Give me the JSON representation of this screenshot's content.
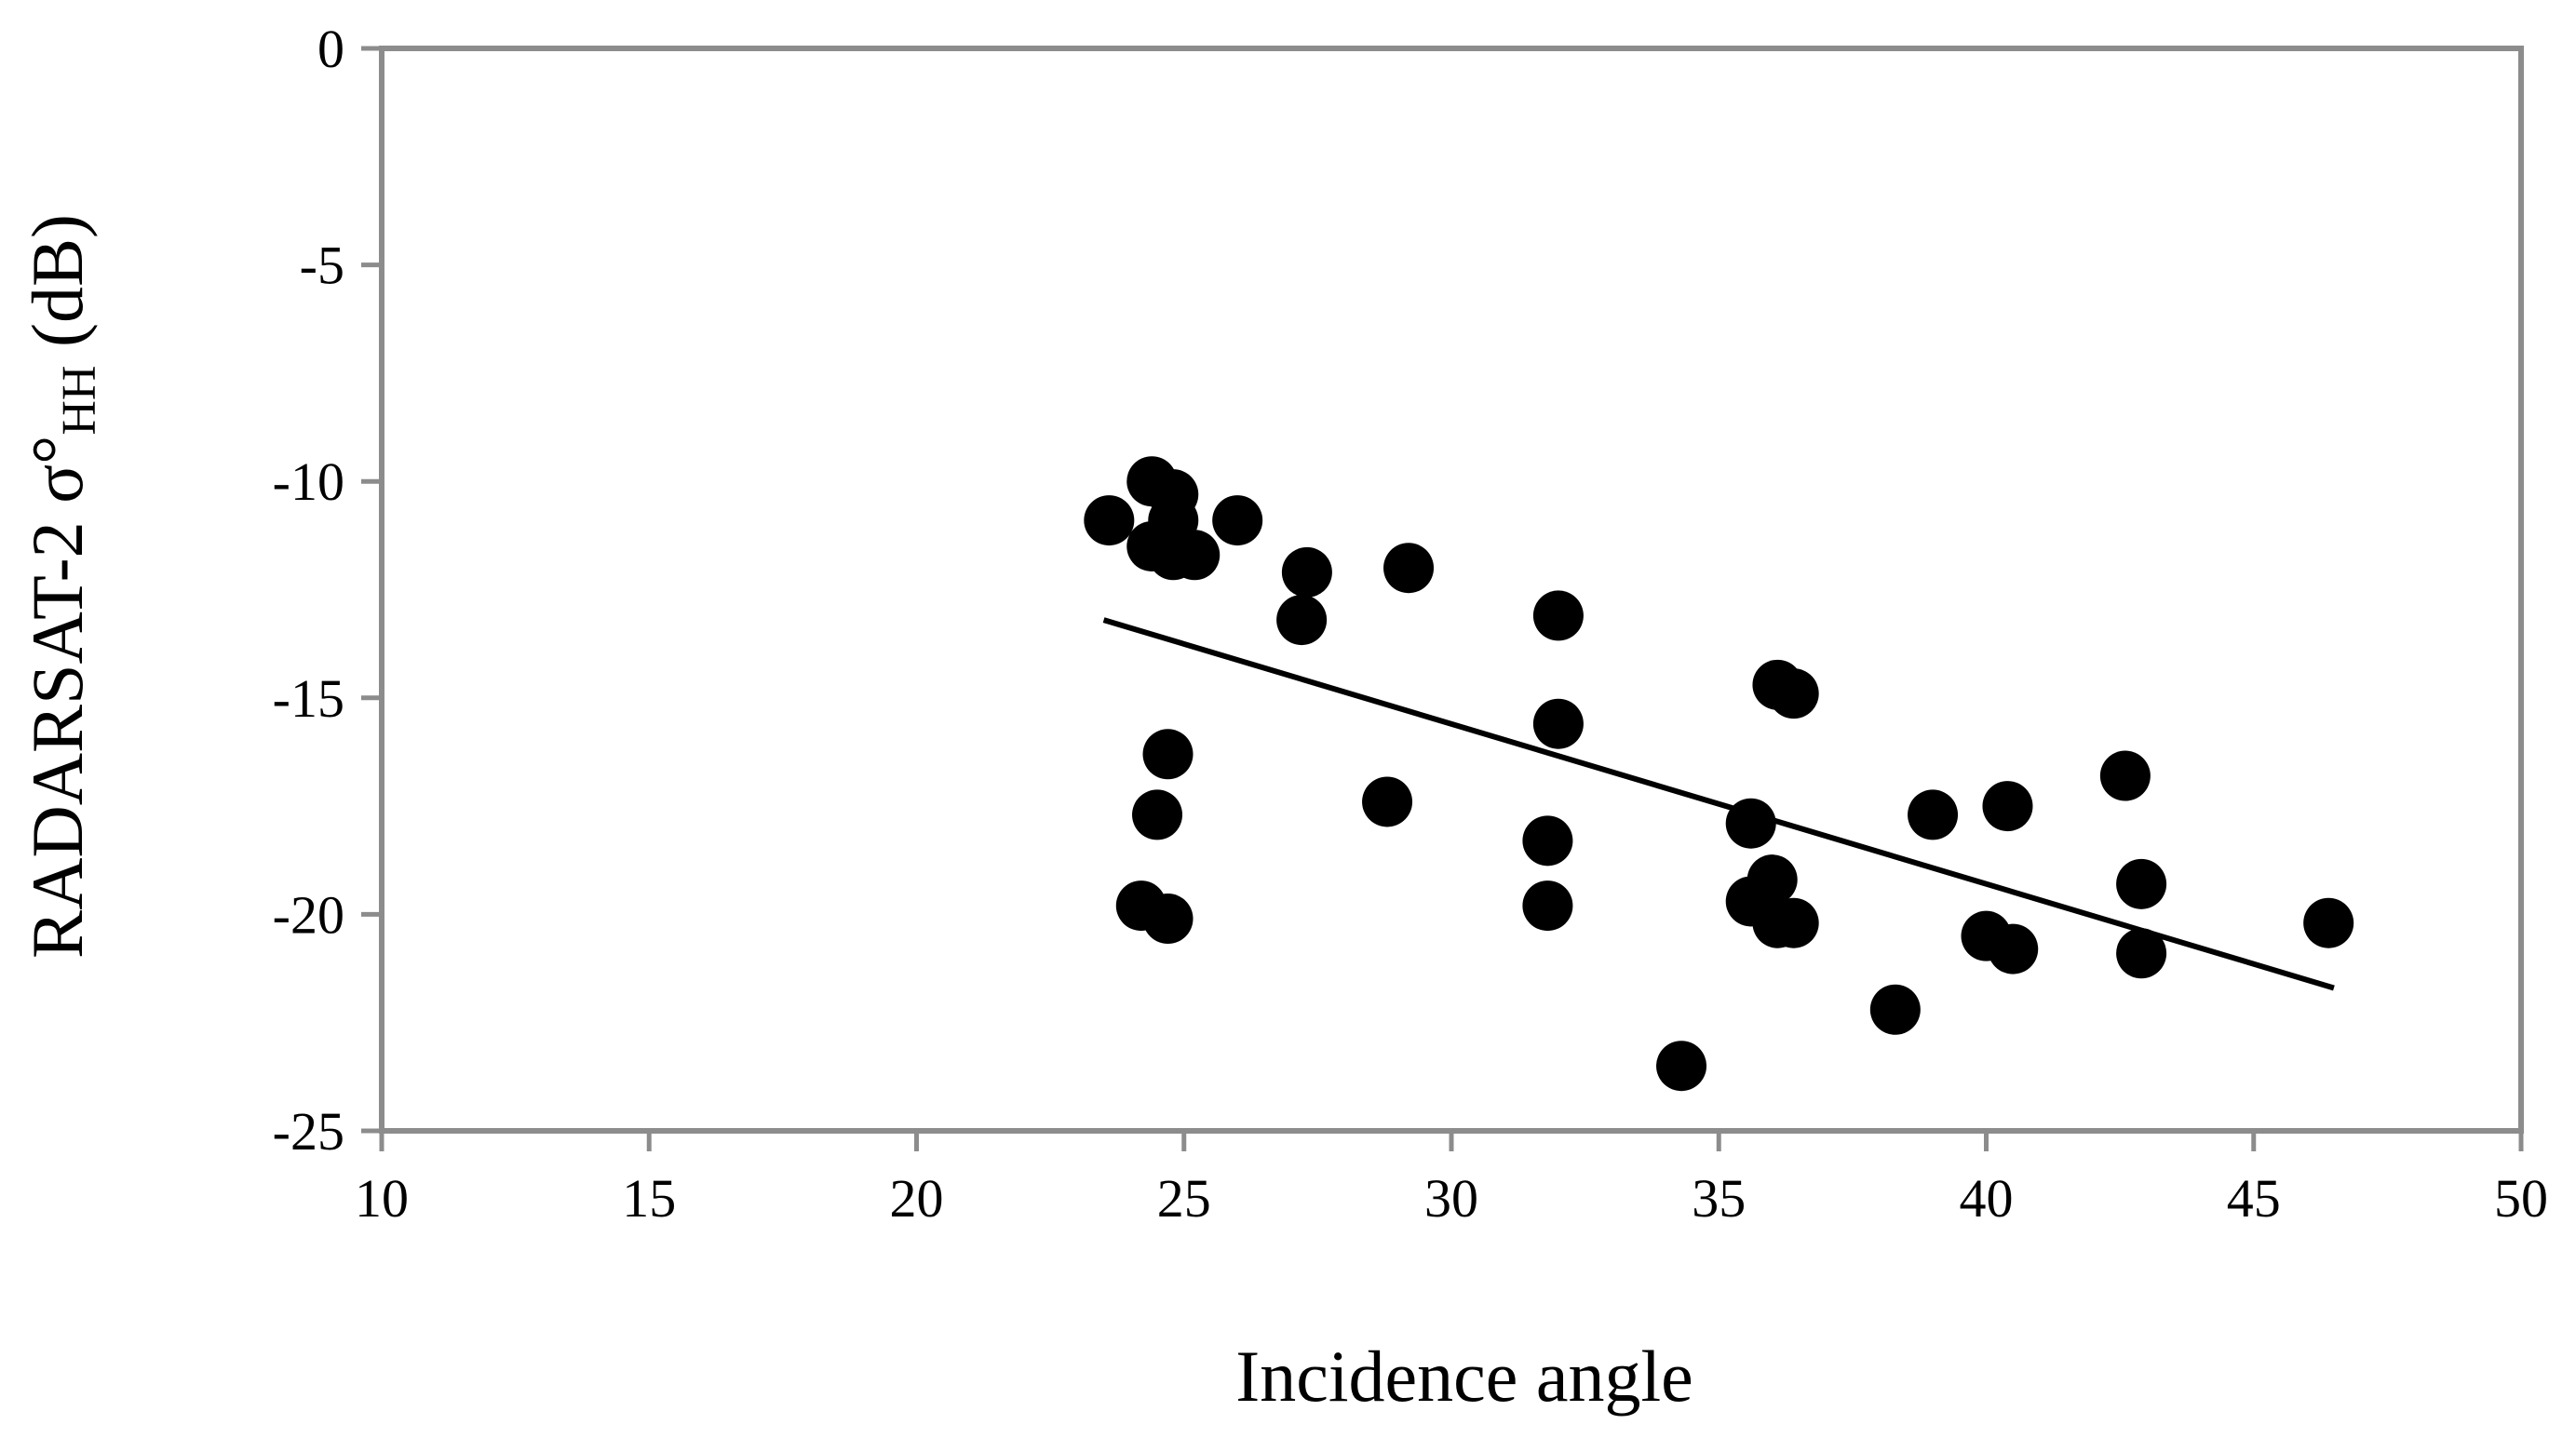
{
  "chart_data": {
    "type": "scatter",
    "xlabel": "Incidence angle",
    "ylabel": {
      "main": "RADARSAT-2 σ°",
      "subscript": "HH",
      "suffix": " (dB)"
    },
    "xlim": [
      10,
      50
    ],
    "ylim": [
      -25,
      0
    ],
    "xticks": [
      10,
      15,
      20,
      25,
      30,
      35,
      40,
      45,
      50
    ],
    "yticks": [
      0,
      -5,
      -10,
      -15,
      -20,
      -25
    ],
    "grid": false,
    "legend": "none",
    "colors": {
      "points": "#000000",
      "axes": "#8c8c8c",
      "trendline": "#000000"
    },
    "points": [
      {
        "x": 23.6,
        "y": -10.9
      },
      {
        "x": 24.4,
        "y": -10.0
      },
      {
        "x": 24.8,
        "y": -10.3
      },
      {
        "x": 24.8,
        "y": -10.9
      },
      {
        "x": 24.4,
        "y": -11.5
      },
      {
        "x": 24.8,
        "y": -11.7
      },
      {
        "x": 25.2,
        "y": -11.7
      },
      {
        "x": 26.0,
        "y": -10.9
      },
      {
        "x": 27.3,
        "y": -12.1
      },
      {
        "x": 27.2,
        "y": -13.2
      },
      {
        "x": 29.2,
        "y": -12.0
      },
      {
        "x": 24.7,
        "y": -16.3
      },
      {
        "x": 24.5,
        "y": -17.7
      },
      {
        "x": 24.2,
        "y": -19.8
      },
      {
        "x": 24.7,
        "y": -20.1
      },
      {
        "x": 28.8,
        "y": -17.4
      },
      {
        "x": 32.0,
        "y": -13.1
      },
      {
        "x": 32.0,
        "y": -15.6
      },
      {
        "x": 31.8,
        "y": -18.3
      },
      {
        "x": 31.8,
        "y": -19.8
      },
      {
        "x": 34.3,
        "y": -23.5
      },
      {
        "x": 35.6,
        "y": -17.9
      },
      {
        "x": 35.6,
        "y": -19.7
      },
      {
        "x": 36.0,
        "y": -19.2
      },
      {
        "x": 36.1,
        "y": -14.7
      },
      {
        "x": 36.4,
        "y": -14.9
      },
      {
        "x": 36.1,
        "y": -20.2
      },
      {
        "x": 36.4,
        "y": -20.2
      },
      {
        "x": 38.3,
        "y": -22.2
      },
      {
        "x": 39.0,
        "y": -17.7
      },
      {
        "x": 40.0,
        "y": -20.5
      },
      {
        "x": 40.5,
        "y": -20.8
      },
      {
        "x": 40.4,
        "y": -17.5
      },
      {
        "x": 42.6,
        "y": -16.8
      },
      {
        "x": 42.9,
        "y": -19.3
      },
      {
        "x": 42.9,
        "y": -20.9
      },
      {
        "x": 46.4,
        "y": -20.2
      }
    ],
    "trendline": {
      "x": [
        23.5,
        46.5
      ],
      "y": [
        -13.2,
        -21.7
      ]
    }
  }
}
